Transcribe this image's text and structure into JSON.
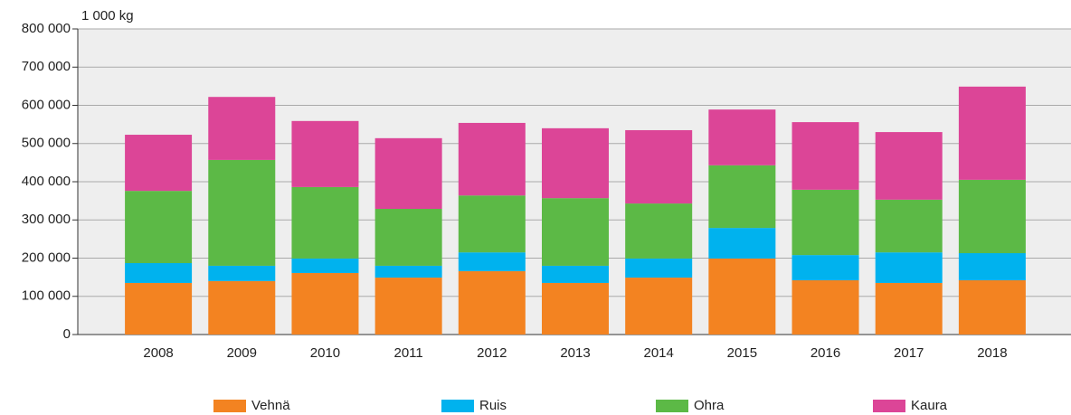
{
  "chart_data": {
    "type": "stacked_bar",
    "unit_label": "1 000 kg",
    "categories": [
      "2008",
      "2009",
      "2010",
      "2011",
      "2012",
      "2013",
      "2014",
      "2015",
      "2016",
      "2017",
      "2018"
    ],
    "series": [
      {
        "name": "Vehnä",
        "color": "#f38321",
        "values": [
          135000,
          140000,
          161000,
          149000,
          166000,
          135000,
          149000,
          199000,
          142000,
          135000,
          142000
        ]
      },
      {
        "name": "Ruis",
        "color": "#00b2ee",
        "values": [
          52000,
          40000,
          38000,
          31000,
          49000,
          45000,
          50000,
          80000,
          66000,
          80000,
          71000
        ]
      },
      {
        "name": "Ohra",
        "color": "#5cb946",
        "values": [
          189000,
          277000,
          187000,
          149000,
          149000,
          177000,
          144000,
          164000,
          171000,
          138000,
          192000
        ]
      },
      {
        "name": "Kaura",
        "color": "#dc4597",
        "values": [
          147000,
          165000,
          173000,
          185000,
          190000,
          183000,
          192000,
          146000,
          177000,
          177000,
          244000
        ]
      }
    ],
    "ylim": [
      0,
      800000
    ],
    "yticks": [
      0,
      {
        "value": 100000,
        "label": "100 000"
      },
      {
        "value": 200000,
        "label": "200 000"
      },
      {
        "value": 300000,
        "label": "300 000"
      },
      {
        "value": 400000,
        "label": "400 000"
      },
      {
        "value": 500000,
        "label": "500 000"
      },
      {
        "value": 600000,
        "label": "600 000"
      },
      {
        "value": 700000,
        "label": "700 000"
      },
      {
        "value": 800000,
        "label": "800 000"
      }
    ],
    "grid": true,
    "legend": "bottom"
  }
}
